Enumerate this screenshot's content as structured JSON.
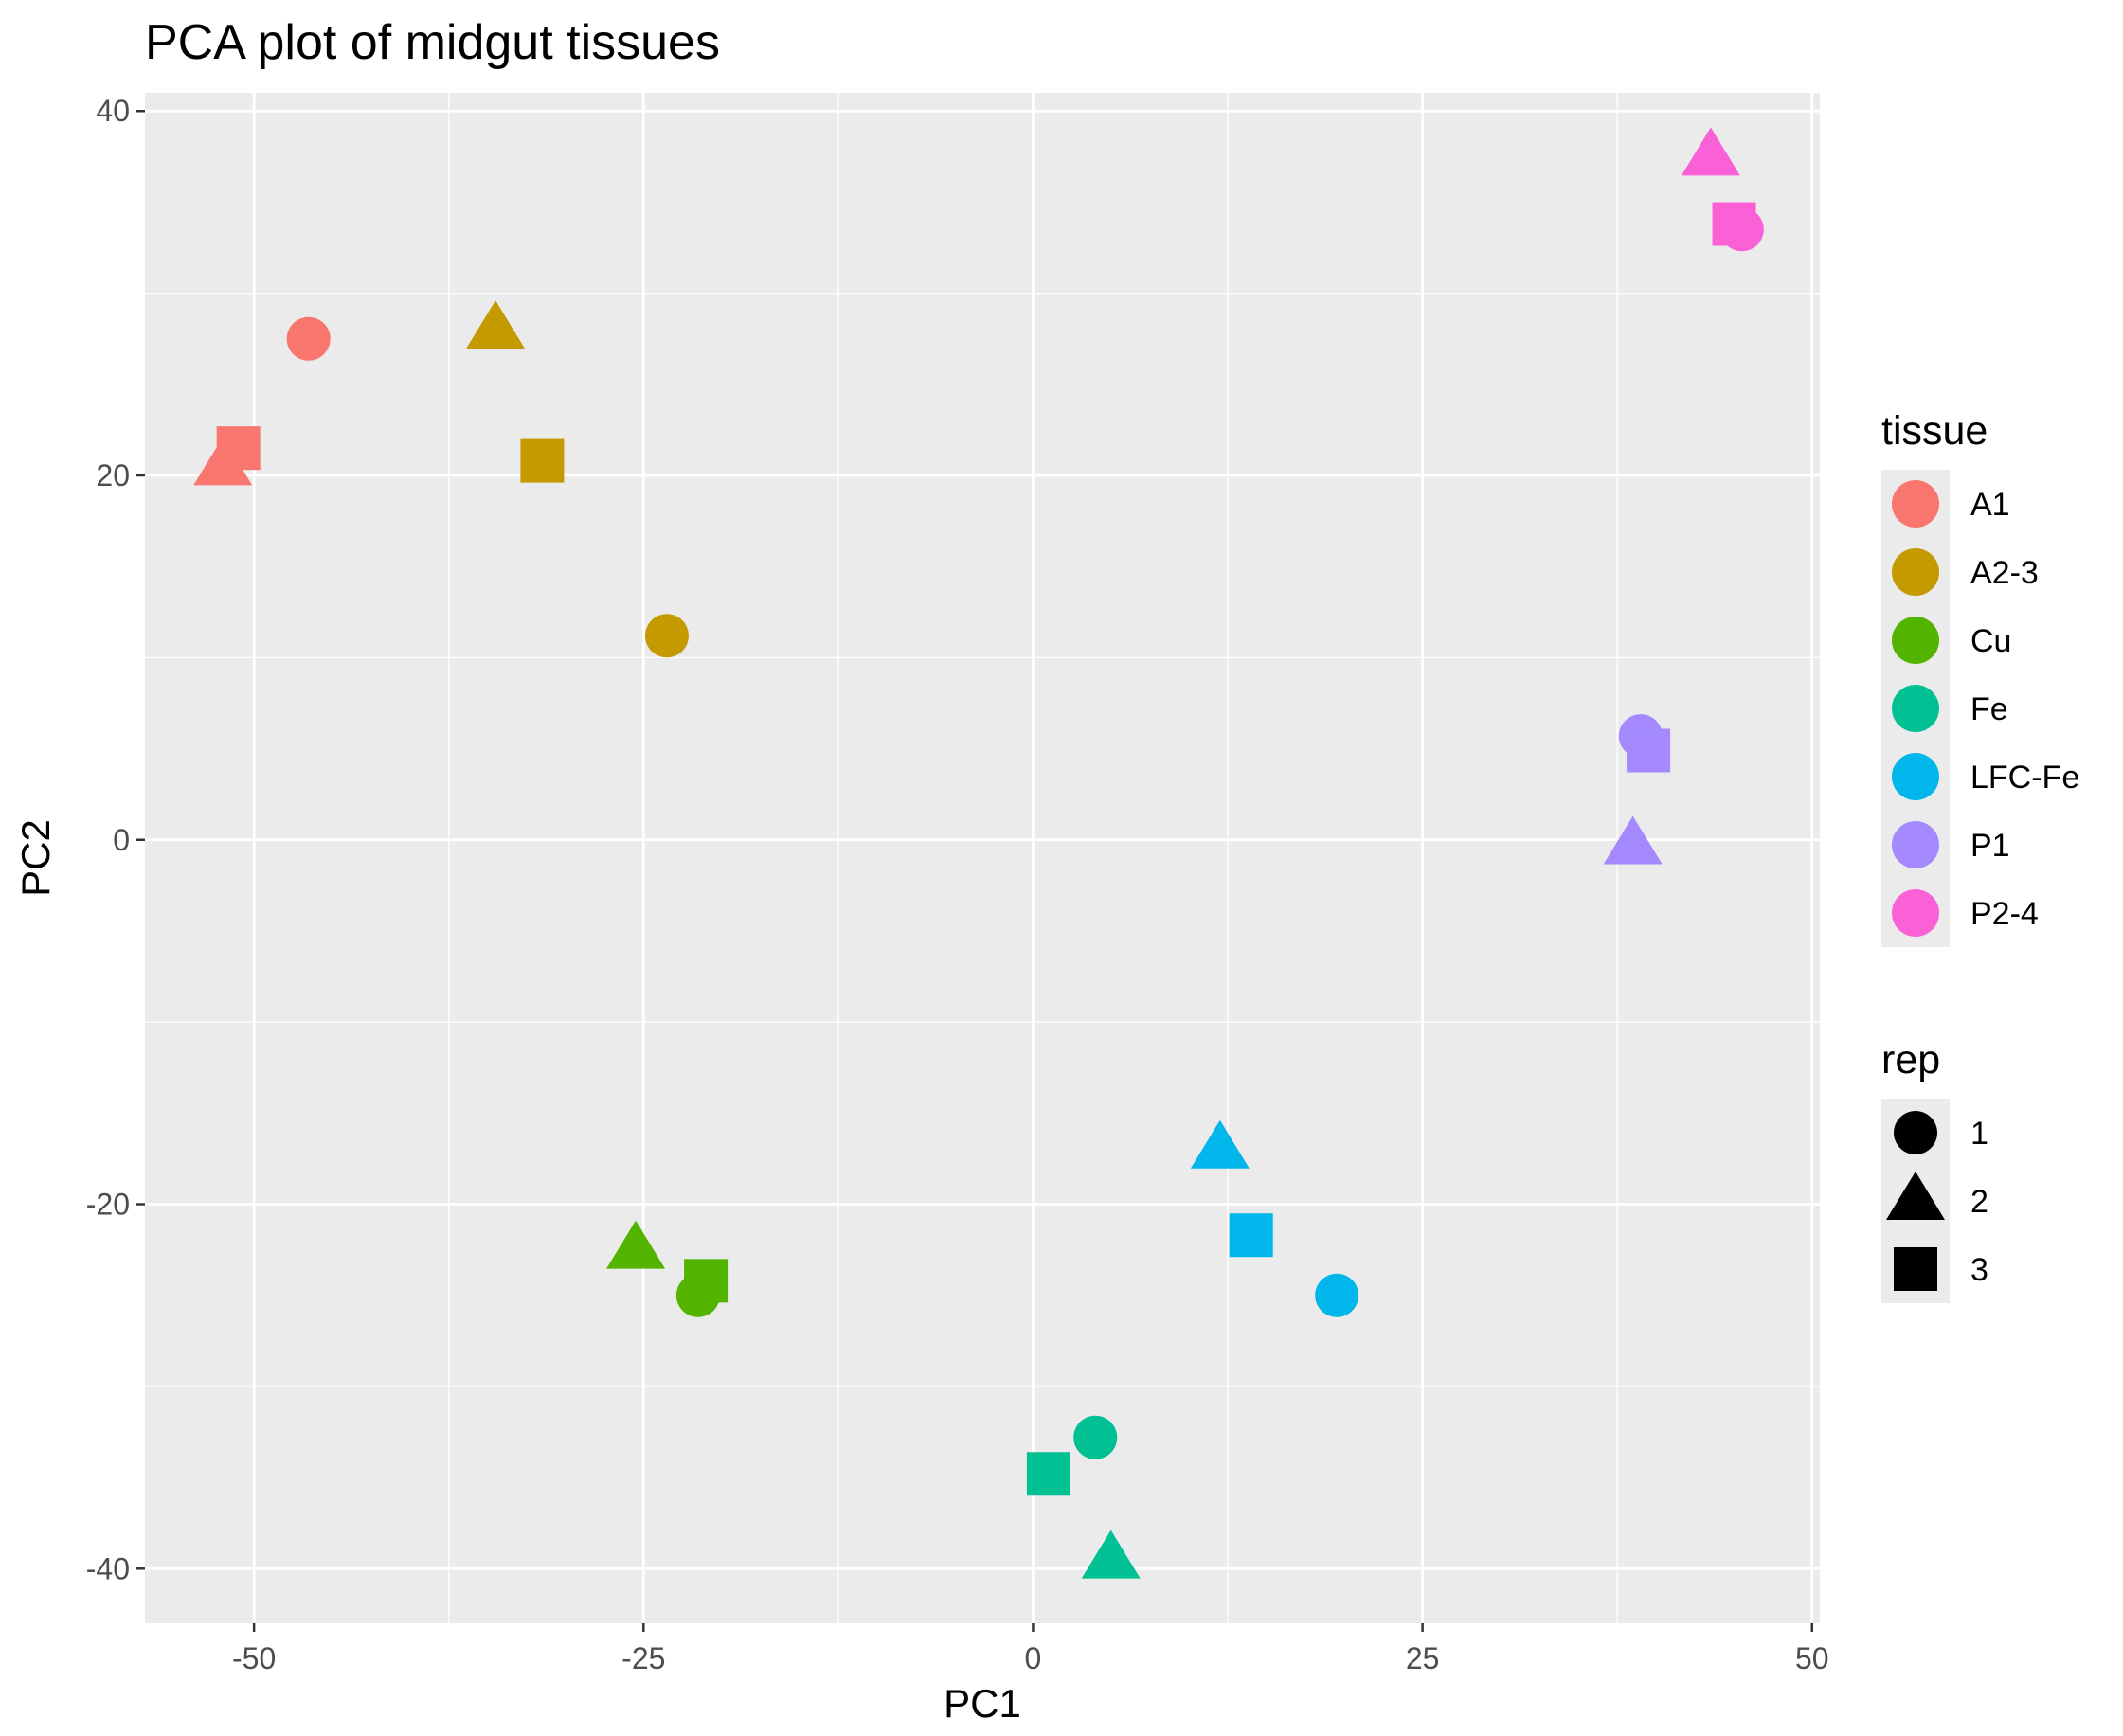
{
  "chart_data": {
    "type": "scatter",
    "title": "PCA plot of midgut tissues",
    "xlabel": "PC1",
    "ylabel": "PC2",
    "xlim": [
      -57,
      50.5
    ],
    "ylim": [
      -43,
      41
    ],
    "x_ticks": [
      -50,
      -25,
      0,
      25,
      50
    ],
    "x_tick_labels": [
      "-50",
      "-25",
      "0",
      "25",
      "50"
    ],
    "y_ticks": [
      -40,
      -20,
      0,
      20,
      40
    ],
    "y_tick_labels": [
      "-40",
      "-20",
      "0",
      "20",
      "40"
    ],
    "grid": true,
    "legend_position": "right",
    "color_legend": {
      "title": "tissue",
      "entries": [
        {
          "label": "A1",
          "color": "#F8766D"
        },
        {
          "label": "A2-3",
          "color": "#C49A00"
        },
        {
          "label": "Cu",
          "color": "#53B400"
        },
        {
          "label": "Fe",
          "color": "#00C094"
        },
        {
          "label": "LFC-Fe",
          "color": "#00B6EB"
        },
        {
          "label": "P1",
          "color": "#A58AFF"
        },
        {
          "label": "P2-4",
          "color": "#FB61D7"
        }
      ]
    },
    "shape_legend": {
      "title": "rep",
      "entries": [
        {
          "label": "1",
          "shape": "circle"
        },
        {
          "label": "2",
          "shape": "triangle"
        },
        {
          "label": "3",
          "shape": "square"
        }
      ]
    },
    "points": [
      {
        "tissue": "A1",
        "rep": "1",
        "x": -46.5,
        "y": 27.5
      },
      {
        "tissue": "A1",
        "rep": "2",
        "x": -52.0,
        "y": 20.5
      },
      {
        "tissue": "A1",
        "rep": "3",
        "x": -51.0,
        "y": 21.5
      },
      {
        "tissue": "A2-3",
        "rep": "1",
        "x": -23.5,
        "y": 11.2
      },
      {
        "tissue": "A2-3",
        "rep": "2",
        "x": -34.5,
        "y": 28.0
      },
      {
        "tissue": "A2-3",
        "rep": "3",
        "x": -31.5,
        "y": 20.8
      },
      {
        "tissue": "Cu",
        "rep": "1",
        "x": -21.5,
        "y": -25.0
      },
      {
        "tissue": "Cu",
        "rep": "2",
        "x": -25.5,
        "y": -22.5
      },
      {
        "tissue": "Cu",
        "rep": "3",
        "x": -21.0,
        "y": -24.2
      },
      {
        "tissue": "Fe",
        "rep": "1",
        "x": 4.0,
        "y": -32.8
      },
      {
        "tissue": "Fe",
        "rep": "2",
        "x": 5.0,
        "y": -39.5
      },
      {
        "tissue": "Fe",
        "rep": "3",
        "x": 1.0,
        "y": -34.8
      },
      {
        "tissue": "LFC-Fe",
        "rep": "1",
        "x": 19.5,
        "y": -25.0
      },
      {
        "tissue": "LFC-Fe",
        "rep": "2",
        "x": 12.0,
        "y": -17.0
      },
      {
        "tissue": "LFC-Fe",
        "rep": "3",
        "x": 14.0,
        "y": -21.7
      },
      {
        "tissue": "P1",
        "rep": "1",
        "x": 39.0,
        "y": 5.7
      },
      {
        "tissue": "P1",
        "rep": "2",
        "x": 38.5,
        "y": -0.3
      },
      {
        "tissue": "P1",
        "rep": "3",
        "x": 39.5,
        "y": 4.9
      },
      {
        "tissue": "P2-4",
        "rep": "1",
        "x": 45.5,
        "y": 33.5
      },
      {
        "tissue": "P2-4",
        "rep": "2",
        "x": 43.5,
        "y": 37.5
      },
      {
        "tissue": "P2-4",
        "rep": "3",
        "x": 45.0,
        "y": 33.8
      }
    ]
  }
}
